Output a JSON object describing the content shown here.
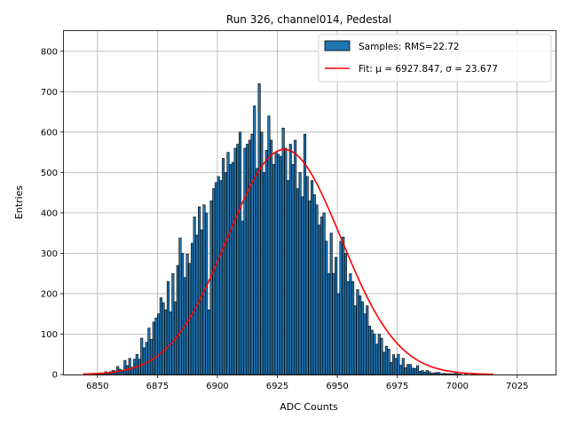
{
  "chart_data": {
    "type": "bar",
    "title": "Run 326, channel014, Pedestal",
    "xlabel": "ADC Counts",
    "ylabel": "Entries",
    "xlim": [
      6836,
      7041
    ],
    "ylim": [
      0,
      850
    ],
    "xticks": [
      6850,
      6875,
      6900,
      6925,
      6950,
      6975,
      7000,
      7025
    ],
    "yticks": [
      0,
      100,
      200,
      300,
      400,
      500,
      600,
      700,
      800
    ],
    "grid": true,
    "bin_start": 6844,
    "bin_width": 1,
    "counts": [
      0,
      0,
      0,
      2,
      1,
      2,
      3,
      4,
      3,
      7,
      5,
      7,
      10,
      9,
      20,
      13,
      10,
      35,
      22,
      40,
      18,
      38,
      50,
      38,
      90,
      66,
      80,
      115,
      87,
      130,
      140,
      150,
      190,
      178,
      160,
      230,
      155,
      250,
      180,
      270,
      338,
      300,
      240,
      298,
      275,
      325,
      390,
      345,
      415,
      358,
      420,
      400,
      160,
      430,
      460,
      475,
      490,
      480,
      535,
      500,
      550,
      520,
      525,
      560,
      570,
      600,
      380,
      560,
      570,
      580,
      595,
      665,
      510,
      720,
      600,
      500,
      555,
      640,
      580,
      520,
      550,
      545,
      540,
      610,
      560,
      480,
      570,
      520,
      580,
      460,
      500,
      440,
      595,
      490,
      430,
      480,
      445,
      420,
      370,
      390,
      400,
      330,
      250,
      350,
      250,
      290,
      200,
      330,
      340,
      300,
      230,
      250,
      230,
      170,
      210,
      195,
      180,
      150,
      170,
      120,
      110,
      100,
      75,
      100,
      90,
      55,
      70,
      63,
      30,
      49,
      40,
      50,
      23,
      40,
      17,
      25,
      25,
      16,
      15,
      22,
      8,
      10,
      6,
      10,
      7,
      3,
      4,
      5,
      5,
      2,
      3,
      2,
      2,
      2,
      2,
      3,
      1,
      1,
      0,
      1,
      0,
      0,
      1,
      1,
      0,
      0,
      0,
      0,
      0,
      0,
      0,
      0,
      0,
      0,
      0,
      0,
      0,
      0,
      0,
      0,
      0,
      0,
      0,
      0,
      0,
      0,
      0,
      0,
      0,
      0,
      0,
      0,
      0,
      0,
      0,
      0,
      0,
      0,
      0,
      0,
      0,
      0,
      0,
      0,
      0,
      0,
      0,
      0
    ],
    "fit": {
      "mu": 6927.847,
      "sigma": 23.677,
      "amplitude": 557,
      "x_range": [
        6844,
        7015
      ]
    },
    "legend": {
      "placement": "top-right",
      "entries": [
        {
          "label": "Samples: RMS=22.72",
          "kind": "patch",
          "color": "#1f77b4"
        },
        {
          "label": "Fit: μ = 6927.847, σ = 23.677",
          "kind": "line",
          "color": "#e41a1c"
        }
      ]
    },
    "colors": {
      "bar_fill": "#1f77b4",
      "bar_edge": "#000000",
      "fit_line": "#ff0000",
      "grid": "#b0b0b0"
    }
  }
}
